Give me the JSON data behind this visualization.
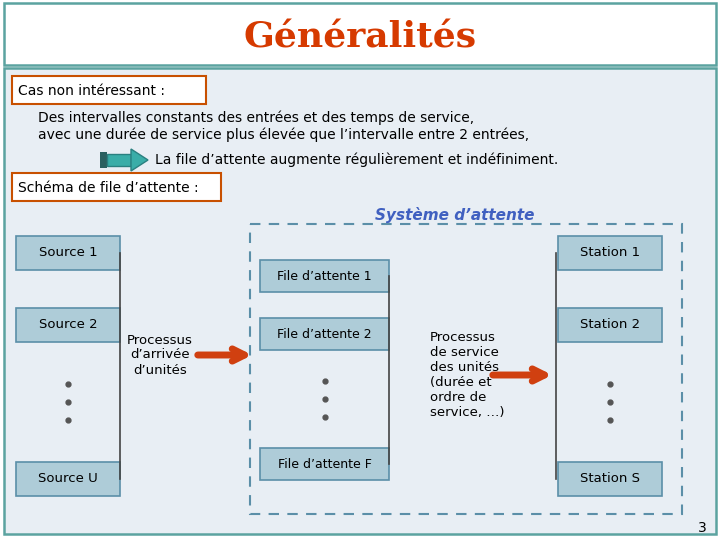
{
  "title": "Généralités",
  "title_color": "#D63A00",
  "title_fontsize": 26,
  "bg_outer": "#FFFFFF",
  "header_bg": "#FFFFFF",
  "header_border": "#5BA3A0",
  "body_bg": "#E8EEF4",
  "body_border": "#5BA3A0",
  "box_fill": "#AECCD8",
  "box_border": "#5B8FA8",
  "cas_border": "#C85000",
  "schema_border": "#C85000",
  "teal_arrow_color": "#3AADA8",
  "teal_dark": "#2A6060",
  "orange_arrow_color": "#D04010",
  "dashed_border_color": "#5B8FA8",
  "systeme_color": "#4060C0",
  "label_cas": "Cas non intéressant :",
  "text_line1": "Des intervalles constants des entrées et des temps de service,",
  "text_line2": "avec une durée de service plus élevée que l’intervalle entre 2 entrées,",
  "arrow_label": "La file d’attente augmente régulièrement et indéfiniment.",
  "label_schema": "Schéma de file d’attente :",
  "label_systeme": "Système d’attente",
  "sources": [
    "Source 1",
    "Source 2",
    "Source U"
  ],
  "stations": [
    "Station 1",
    "Station 2",
    "Station S"
  ],
  "files": [
    "File d’attente 1",
    "File d’attente 2",
    "File d’attente F"
  ],
  "processus_arrivee": "Processus\nd’arrivée\nd’unités",
  "processus_service": "Processus\nde service\ndes unités\n(durée et\nordre de\nservice, …)",
  "page_num": "3"
}
